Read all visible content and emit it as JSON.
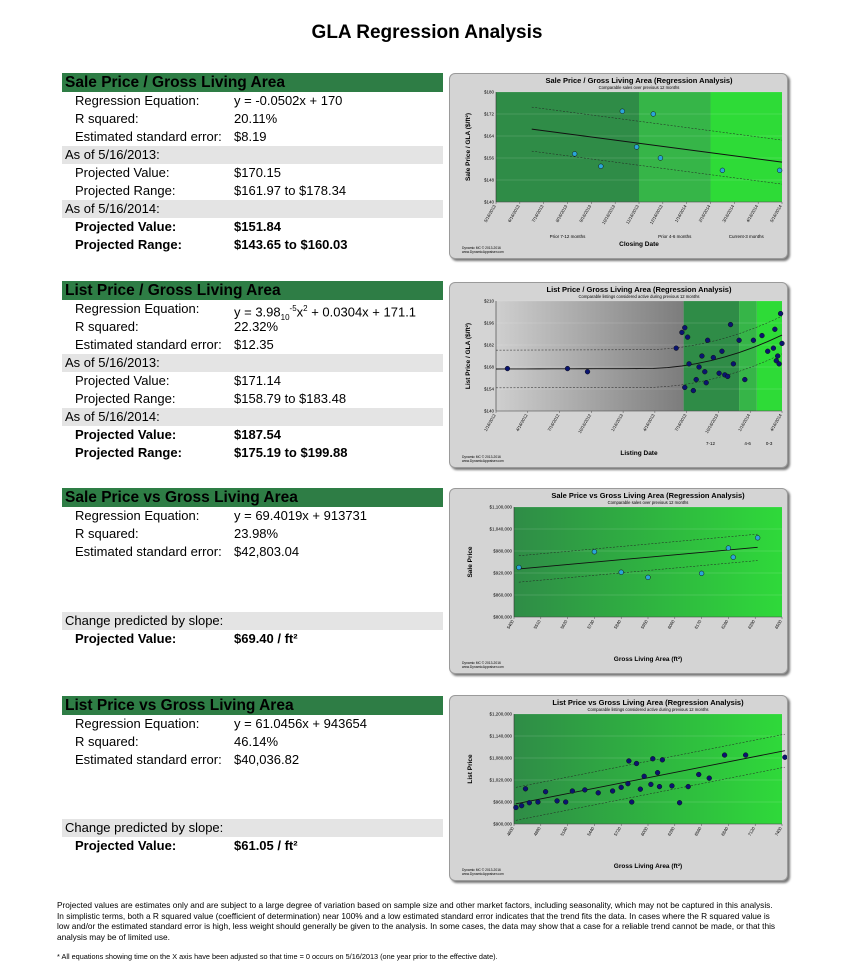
{
  "title": "GLA Regression Analysis",
  "sections": [
    {
      "header": "Sale Price / Gross Living Area",
      "eq_label": "Regression Equation:",
      "eq_value": "y = -0.0502x + 170",
      "r2_label": "R squared:",
      "r2_value": "20.11%",
      "se_label": "Estimated standard error:",
      "se_value": "$8.19",
      "asof1": "As of 5/16/2013:",
      "pv1_label": "Projected Value:",
      "pv1_value": "$170.15",
      "pr1_label": "Projected Range:",
      "pr1_value": "$161.97  to $178.34",
      "asof2": "As of 5/16/2014:",
      "pv2_label": "Projected Value:",
      "pv2_value": "$151.84",
      "pr2_label": "Projected Range:",
      "pr2_value": "$143.65  to $160.03"
    },
    {
      "header": "List Price / Gross Living Area",
      "eq_label": "Regression Equation:",
      "eq_value": "y = 3.98",
      "eq_sub": "10",
      "eq_sup": "-5",
      "eq_rest": "x",
      "eq_sup2": "2",
      "eq_tail": " + 0.0304x + 171.1",
      "r2_label": "R squared:",
      "r2_value": "22.32%",
      "se_label": "Estimated standard error:",
      "se_value": "$12.35",
      "asof1": "As of 5/16/2013:",
      "pv1_label": "Projected Value:",
      "pv1_value": "$171.14",
      "pr1_label": "Projected Range:",
      "pr1_value": "$158.79  to $183.48",
      "asof2": "As of 5/16/2014:",
      "pv2_label": "Projected Value:",
      "pv2_value": "$187.54",
      "pr2_label": "Projected Range:",
      "pr2_value": "$175.19  to $199.88"
    },
    {
      "header": "Sale Price vs Gross Living Area",
      "eq_label": "Regression Equation:",
      "eq_value": "y = 69.4019x + 913731",
      "r2_label": "R squared:",
      "r2_value": "23.98%",
      "se_label": "Estimated standard error:",
      "se_value": "$42,803.04",
      "slope_label": "Change  predicted by slope:",
      "pv_label": "Projected Value:",
      "pv_value": "$69.40  / ft²"
    },
    {
      "header": "List Price vs Gross Living Area",
      "eq_label": "Regression Equation:",
      "eq_value": "y = 61.0456x + 943654",
      "r2_label": "R squared:",
      "r2_value": "46.14%",
      "se_label": "Estimated standard error:",
      "se_value": "$40,036.82",
      "slope_label": "Change  predicted by slope:",
      "pv_label": "Projected Value:",
      "pv_value": "$61.05  / ft²"
    }
  ],
  "chart_data": [
    {
      "type": "scatter",
      "title": "Sale Price / Gross Living Area (Regression Analysis)",
      "subtitle": "Comparable sales over previous 12 months",
      "ylabel": "Sale Price / GLA ($/ft²)",
      "xlabel": "Closing Date",
      "y_ticks": [
        "$180",
        "$172",
        "$164",
        "$156",
        "$148",
        "$140"
      ],
      "ylim": [
        140,
        180
      ],
      "x_ticks": [
        "5/16/2013",
        "6/16/2013",
        "7/16/2013",
        "8/16/2013",
        "9/16/2013",
        "10/16/2013",
        "11/16/2013",
        "12/16/2013",
        "1/16/2014",
        "2/16/2014",
        "3/16/2014",
        "4/16/2014",
        "5/16/2014"
      ],
      "zones": [
        "Prior 7-12 months",
        "Prior 4-6 months",
        "Current-3 months"
      ],
      "points": [
        [
          3.3,
          157.5
        ],
        [
          4.4,
          153
        ],
        [
          5.3,
          173
        ],
        [
          5.9,
          160
        ],
        [
          6.6,
          172
        ],
        [
          6.9,
          156
        ],
        [
          9.5,
          151.5
        ],
        [
          11.9,
          151.5
        ]
      ],
      "colors": {
        "zone1": "#2f8c47",
        "zone2": "#36b548",
        "zone3": "#2edb37",
        "point": "#2aa6d8"
      }
    },
    {
      "type": "scatter",
      "title": "List Price / Gross Living Area (Regression Analysis)",
      "subtitle": "Comparable listings considered active during previous 12 months",
      "ylabel": "List Price / GLA ($/ft²)",
      "xlabel": "Listing Date",
      "y_ticks": [
        "$210",
        "$196",
        "$182",
        "$168",
        "$154",
        "$140"
      ],
      "ylim": [
        140,
        210
      ],
      "x_ticks": [
        "1/16/2012",
        "4/16/2012",
        "7/16/2012",
        "10/16/2012",
        "1/16/2013",
        "4/16/2013",
        "7/16/2013",
        "10/16/2013",
        "1/16/2014",
        "4/16/2014"
      ],
      "zones": [
        "7-12",
        "4-6",
        "0-3"
      ],
      "points": [
        [
          0.4,
          167
        ],
        [
          2.5,
          167
        ],
        [
          3.2,
          165
        ],
        [
          6.3,
          180
        ],
        [
          6.5,
          190
        ],
        [
          6.6,
          193
        ],
        [
          6.7,
          187
        ],
        [
          6.75,
          170
        ],
        [
          6.6,
          155
        ],
        [
          6.9,
          153
        ],
        [
          7.0,
          160
        ],
        [
          7.1,
          168
        ],
        [
          7.2,
          175
        ],
        [
          7.3,
          165
        ],
        [
          7.35,
          158
        ],
        [
          7.4,
          185
        ],
        [
          7.6,
          174
        ],
        [
          7.8,
          164
        ],
        [
          7.9,
          178
        ],
        [
          8.0,
          163
        ],
        [
          8.1,
          162
        ],
        [
          8.2,
          195
        ],
        [
          8.3,
          170
        ],
        [
          8.5,
          185
        ],
        [
          8.7,
          160
        ],
        [
          9.0,
          185
        ],
        [
          9.3,
          188
        ],
        [
          9.5,
          178
        ],
        [
          9.7,
          180
        ],
        [
          9.75,
          192
        ],
        [
          9.8,
          172
        ],
        [
          9.85,
          175
        ],
        [
          9.9,
          170
        ],
        [
          9.95,
          202
        ],
        [
          10.0,
          183
        ]
      ],
      "colors": {
        "gray": "#b8b8b8",
        "zone1": "#2f8c47",
        "zone2": "#36b548",
        "zone3": "#2edb37",
        "point": "#0a1470"
      }
    },
    {
      "type": "scatter",
      "title": "Sale Price vs Gross Living Area (Regression Analysis)",
      "subtitle": "Comparable sales over previous 12 months",
      "ylabel": "Sale Price",
      "xlabel": "Gross Living Area (ft²)",
      "y_ticks": [
        "$1,100,000",
        "$1,040,000",
        "$980,000",
        "$920,000",
        "$860,000",
        "$800,000"
      ],
      "ylim": [
        800000,
        1100000
      ],
      "x_ticks": [
        "5400",
        "5510",
        "5620",
        "5730",
        "5840",
        "5950",
        "6060",
        "6170",
        "6280",
        "6390",
        "6500"
      ],
      "points": [
        [
          5420,
          935000
        ],
        [
          5730,
          978000
        ],
        [
          5840,
          922000
        ],
        [
          5950,
          908000
        ],
        [
          6170,
          919000
        ],
        [
          6280,
          988000
        ],
        [
          6300,
          963000
        ],
        [
          6400,
          1016000
        ]
      ],
      "colors": {
        "point": "#2aa6d8"
      }
    },
    {
      "type": "scatter",
      "title": "List Price vs Gross Living Area (Regression Analysis)",
      "subtitle": "Comparable listings considered active during previous 12 months",
      "ylabel": "List Price",
      "xlabel": "Gross Living Area (ft²)",
      "y_ticks": [
        "$1,200,000",
        "$1,140,000",
        "$1,080,000",
        "$1,020,000",
        "$960,000",
        "$900,000"
      ],
      "ylim": [
        900000,
        1200000
      ],
      "x_ticks": [
        "4600",
        "4880",
        "5160",
        "5440",
        "5720",
        "6000",
        "6280",
        "6560",
        "6840",
        "7120",
        "7400"
      ],
      "points": [
        [
          4620,
          945000
        ],
        [
          4680,
          950000
        ],
        [
          4760,
          958000
        ],
        [
          4720,
          996000
        ],
        [
          4850,
          960000
        ],
        [
          4930,
          988000
        ],
        [
          5050,
          963000
        ],
        [
          5140,
          960000
        ],
        [
          5210,
          990000
        ],
        [
          5340,
          993000
        ],
        [
          5480,
          985000
        ],
        [
          5630,
          990000
        ],
        [
          5720,
          1000000
        ],
        [
          5790,
          1010000
        ],
        [
          5800,
          1072000
        ],
        [
          5830,
          960000
        ],
        [
          5880,
          1065000
        ],
        [
          5920,
          995000
        ],
        [
          5960,
          1030000
        ],
        [
          6030,
          1008000
        ],
        [
          6050,
          1078000
        ],
        [
          6100,
          1040000
        ],
        [
          6120,
          1002000
        ],
        [
          6150,
          1075000
        ],
        [
          6250,
          1004000
        ],
        [
          6330,
          958000
        ],
        [
          6420,
          1002000
        ],
        [
          6530,
          1035000
        ],
        [
          6640,
          1025000
        ],
        [
          6800,
          1088000
        ],
        [
          7020,
          1088000
        ],
        [
          7430,
          1082000
        ]
      ],
      "colors": {
        "point": "#0a1470"
      }
    }
  ],
  "chart_footer": "Dynamic MC  © 2013-2016\nwww.DynamicAppraiser.com",
  "footnote": "Projected values are estimates only and are subject to a large degree of variation based on sample size and other market factors, including seasonality, which may not be captured in this analysis. In simplistic terms, both a R squared value (coefficient of determination) near 100% and a low estimated standard error indicates that the trend fits the data. In cases where the R squared value is low and/or the estimated standard error is high, less weight should generally be given to the analysis. In some cases, the data may show that a case for a reliable trend cannot be made, or that this analysis may be of limited use.",
  "footnote2": "* All equations showing time on the X axis have been adjusted so that time = 0 occurs on 5/16/2013  (one year prior to the effective date)."
}
